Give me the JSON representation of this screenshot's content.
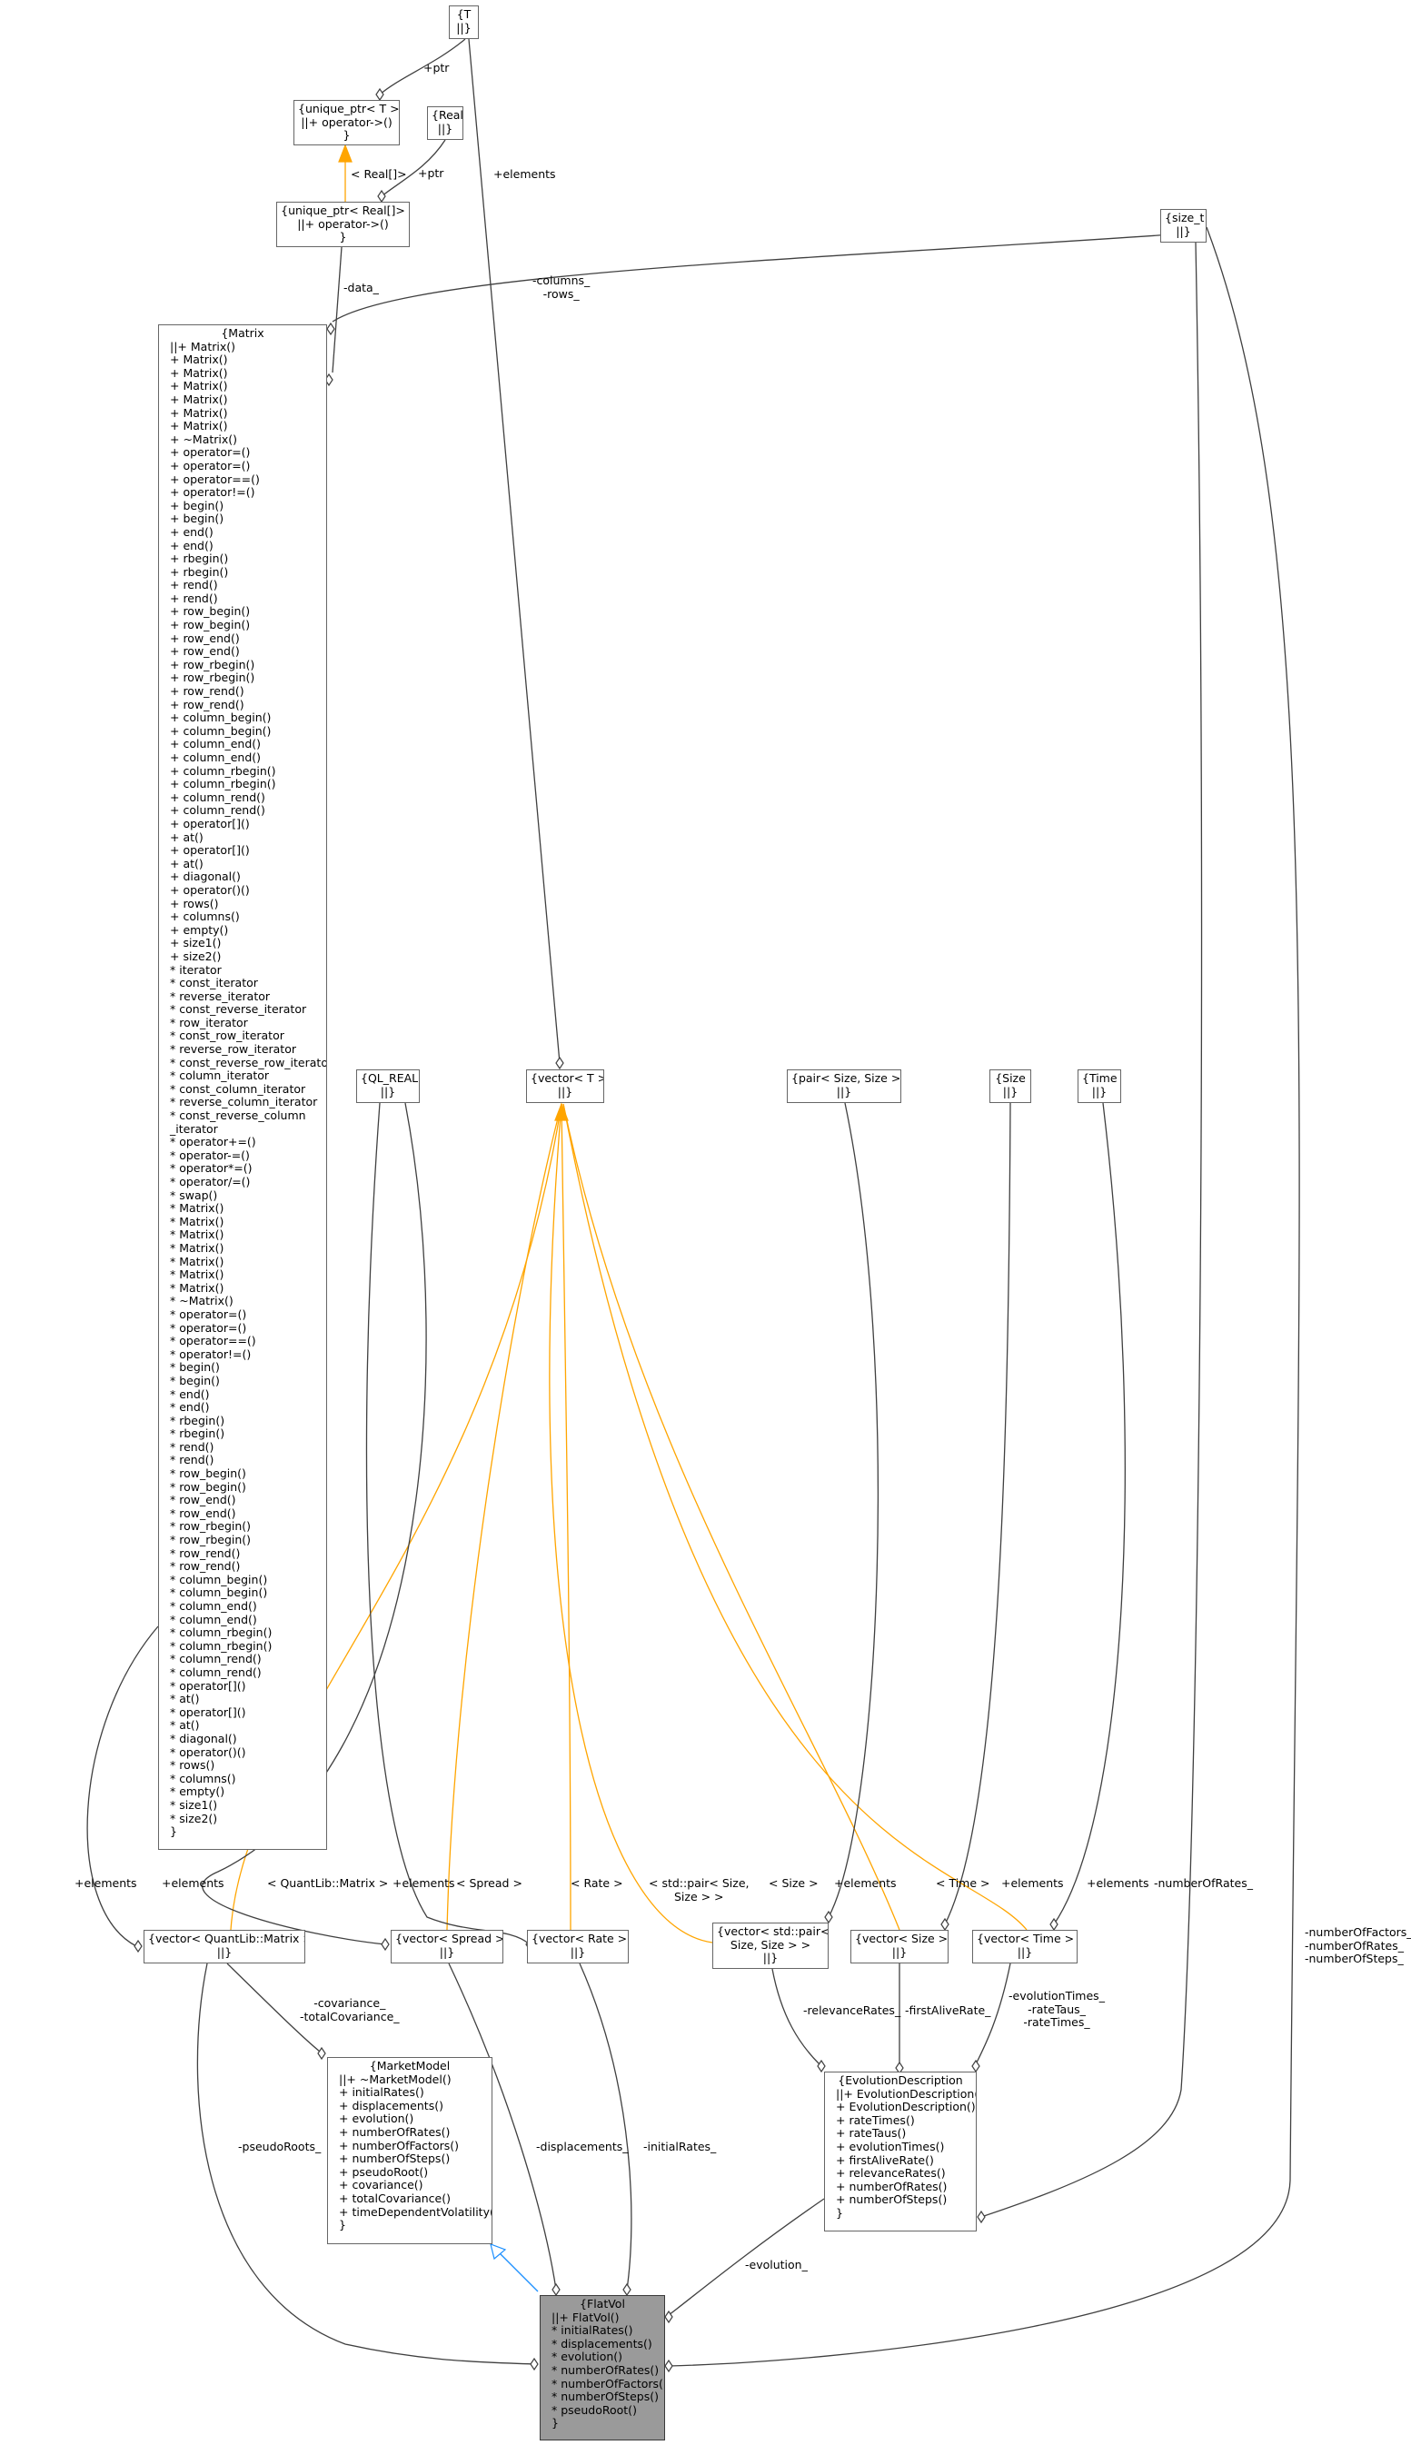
{
  "colors": {
    "association": "#404040",
    "template": "#ffa500",
    "inheritance": "#1e90ff",
    "focus_fill": "#9a9a9a"
  },
  "nodes": {
    "t": {
      "lines": [
        "{T",
        "||}"
      ]
    },
    "unique_ptr_t": {
      "lines": [
        "{unique_ptr< T >",
        "||+ operator->()",
        "}"
      ]
    },
    "real": {
      "lines": [
        "{Real",
        "||}"
      ]
    },
    "unique_ptr_real": {
      "lines": [
        "{unique_ptr< Real[]>",
        "||+ operator->()",
        "}"
      ]
    },
    "size_t": {
      "lines": [
        "{size_t",
        "||}"
      ]
    },
    "matrix": {
      "lines": [
        "{Matrix",
        "||+ Matrix()",
        "+ Matrix()",
        "+ Matrix()",
        "+ Matrix()",
        "+ Matrix()",
        "+ Matrix()",
        "+ Matrix()",
        "+ ~Matrix()",
        "+ operator=()",
        "+ operator=()",
        "+ operator==()",
        "+ operator!=()",
        "+ begin()",
        "+ begin()",
        "+ end()",
        "+ end()",
        "+ rbegin()",
        "+ rbegin()",
        "+ rend()",
        "+ rend()",
        "+ row_begin()",
        "+ row_begin()",
        "+ row_end()",
        "+ row_end()",
        "+ row_rbegin()",
        "+ row_rbegin()",
        "+ row_rend()",
        "+ row_rend()",
        "+ column_begin()",
        "+ column_begin()",
        "+ column_end()",
        "+ column_end()",
        "+ column_rbegin()",
        "+ column_rbegin()",
        "+ column_rend()",
        "+ column_rend()",
        "+ operator[]()",
        "+ at()",
        "+ operator[]()",
        "+ at()",
        "+ diagonal()",
        "+ operator()()",
        "+ rows()",
        "+ columns()",
        "+ empty()",
        "+ size1()",
        "+ size2()",
        "* iterator",
        "* const_iterator",
        "* reverse_iterator",
        "* const_reverse_iterator",
        "* row_iterator",
        "* const_row_iterator",
        "* reverse_row_iterator",
        "* const_reverse_row_iterator",
        "* column_iterator",
        "* const_column_iterator",
        "* reverse_column_iterator",
        "* const_reverse_column",
        "_iterator",
        "* operator+=()",
        "* operator-=()",
        "* operator*=()",
        "* operator/=()",
        "* swap()",
        "* Matrix()",
        "* Matrix()",
        "* Matrix()",
        "* Matrix()",
        "* Matrix()",
        "* Matrix()",
        "* Matrix()",
        "* ~Matrix()",
        "* operator=()",
        "* operator=()",
        "* operator==()",
        "* operator!=()",
        "* begin()",
        "* begin()",
        "* end()",
        "* end()",
        "* rbegin()",
        "* rbegin()",
        "* rend()",
        "* rend()",
        "* row_begin()",
        "* row_begin()",
        "* row_end()",
        "* row_end()",
        "* row_rbegin()",
        "* row_rbegin()",
        "* row_rend()",
        "* row_rend()",
        "* column_begin()",
        "* column_begin()",
        "* column_end()",
        "* column_end()",
        "* column_rbegin()",
        "* column_rbegin()",
        "* column_rend()",
        "* column_rend()",
        "* operator[]()",
        "* at()",
        "* operator[]()",
        "* at()",
        "* diagonal()",
        "* operator()()",
        "* rows()",
        "* columns()",
        "* empty()",
        "* size1()",
        "* size2()",
        "}"
      ]
    },
    "ql_real": {
      "lines": [
        "{QL_REAL",
        "||}"
      ]
    },
    "vector_t": {
      "lines": [
        "{vector< T >",
        "||}"
      ]
    },
    "pair_size": {
      "lines": [
        "{pair< Size, Size >",
        "||}"
      ]
    },
    "size": {
      "lines": [
        "{Size",
        "||}"
      ]
    },
    "time": {
      "lines": [
        "{Time",
        "||}"
      ]
    },
    "vec_matrix": {
      "lines": [
        "{vector< QuantLib::Matrix >",
        "||}"
      ]
    },
    "vec_spread": {
      "lines": [
        "{vector< Spread >",
        "||}"
      ]
    },
    "vec_rate": {
      "lines": [
        "{vector< Rate >",
        "||}"
      ]
    },
    "vec_pair": {
      "lines": [
        "{vector< std::pair<",
        "Size, Size > >",
        "||}"
      ]
    },
    "vec_size": {
      "lines": [
        "{vector< Size >",
        "||}"
      ]
    },
    "vec_time": {
      "lines": [
        "{vector< Time >",
        "||}"
      ]
    },
    "market_model": {
      "lines": [
        "{MarketModel",
        "||+ ~MarketModel()",
        "+ initialRates()",
        "+ displacements()",
        "+ evolution()",
        "+ numberOfRates()",
        "+ numberOfFactors()",
        "+ numberOfSteps()",
        "+ pseudoRoot()",
        "+ covariance()",
        "+ totalCovariance()",
        "+ timeDependentVolatility()",
        "}"
      ]
    },
    "evolution_description": {
      "lines": [
        "{EvolutionDescription",
        "||+ EvolutionDescription()",
        "+ EvolutionDescription()",
        "+ rateTimes()",
        "+ rateTaus()",
        "+ evolutionTimes()",
        "+ firstAliveRate()",
        "+ relevanceRates()",
        "+ numberOfRates()",
        "+ numberOfSteps()",
        "}"
      ]
    },
    "flat_vol": {
      "lines": [
        "{FlatVol",
        "||+ FlatVol()",
        "* initialRates()",
        "* displacements()",
        "* evolution()",
        "* numberOfRates()",
        "* numberOfFactors()",
        "* numberOfSteps()",
        "* pseudoRoot()",
        "}"
      ]
    }
  },
  "edge_labels": {
    "ptr_t": "+ptr",
    "ptr_real": "+ptr",
    "real_bind": "< Real[]>",
    "elements_t": "+elements",
    "data": "-data_",
    "columns_rows": "-columns_\n-rows_",
    "elements_matrix_vec": "+elements",
    "elements_qlreal": "+elements",
    "bind_matrix": "< QuantLib::Matrix >",
    "bind_spread": "< Spread >",
    "bind_rate": "< Rate >",
    "bind_pair": "< std::pair< Size,\nSize > >",
    "bind_size": "< Size >",
    "bind_time": "< Time >",
    "elements_pair": "+elements",
    "elements_size": "+elements",
    "elements_time": "+elements",
    "number_of_rates": "-numberOfRates_",
    "flat_sizes": "-numberOfFactors_\n-numberOfRates_\n-numberOfSteps_",
    "covariance": "-covariance_\n-totalCovariance_",
    "relevance": "-relevanceRates_",
    "first_alive": "-firstAliveRate_",
    "evo_times": "-evolutionTimes_\n-rateTaus_\n-rateTimes_",
    "pseudo_roots": "-pseudoRoots_",
    "displacements": "-displacements_",
    "initial_rates": "-initialRates_",
    "evolution": "-evolution_"
  }
}
